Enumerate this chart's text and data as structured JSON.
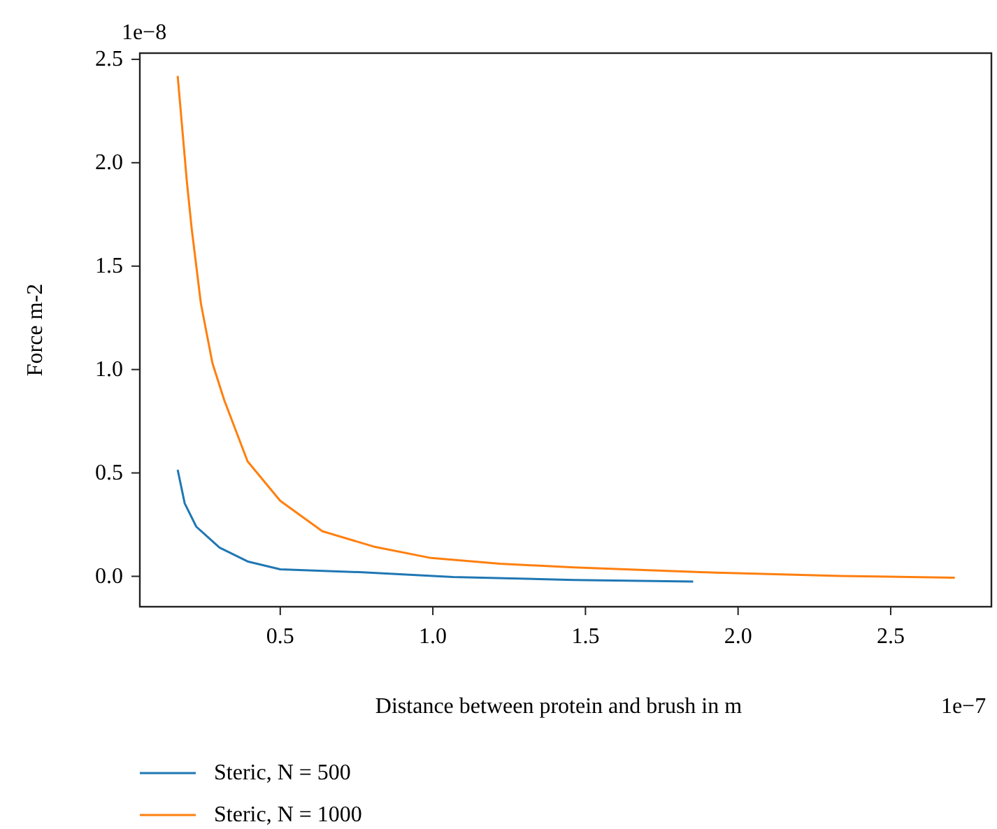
{
  "chart_data": {
    "type": "line",
    "xlabel": "Distance between protein and brush in m",
    "ylabel": "Force m-2",
    "annotations": [
      "1e−8",
      "1e−7"
    ],
    "xlim": [
      0.04,
      2.83
    ],
    "ylim": [
      -0.147,
      2.53
    ],
    "xticks": [
      0.5,
      {
        "value": 1,
        "label": "1.0"
      },
      1.5,
      {
        "value": 2,
        "label": "2.0"
      },
      2.5
    ],
    "yticks": [
      {
        "value": 0,
        "label": "0.0"
      },
      0.5,
      {
        "value": 1,
        "label": "1.0"
      },
      1.5,
      {
        "value": 2,
        "label": "2.0"
      },
      2.5
    ],
    "grid": false,
    "legend": "bottom left",
    "line_style": "solid",
    "marker": "none",
    "series": [
      {
        "name": "Steric, N = 500",
        "color": "#1f77b4",
        "x": [
          0.164,
          0.187,
          0.225,
          0.301,
          0.393,
          0.5,
          0.76,
          1.066,
          1.463,
          1.853
        ],
        "values": [
          0.515,
          0.353,
          0.24,
          0.139,
          0.072,
          0.034,
          0.02,
          -0.003,
          -0.018,
          -0.025
        ]
      },
      {
        "name": "Steric, N = 1000",
        "color": "#ff7f0e",
        "x": [
          0.164,
          0.194,
          0.21,
          0.24,
          0.278,
          0.317,
          0.393,
          0.5,
          0.638,
          0.806,
          0.989,
          1.22,
          1.463,
          1.876,
          2.335,
          2.71
        ],
        "values": [
          2.42,
          1.91,
          1.68,
          1.32,
          1.03,
          0.85,
          0.556,
          0.365,
          0.218,
          0.144,
          0.09,
          0.061,
          0.043,
          0.02,
          0.002,
          -0.007
        ]
      }
    ]
  }
}
